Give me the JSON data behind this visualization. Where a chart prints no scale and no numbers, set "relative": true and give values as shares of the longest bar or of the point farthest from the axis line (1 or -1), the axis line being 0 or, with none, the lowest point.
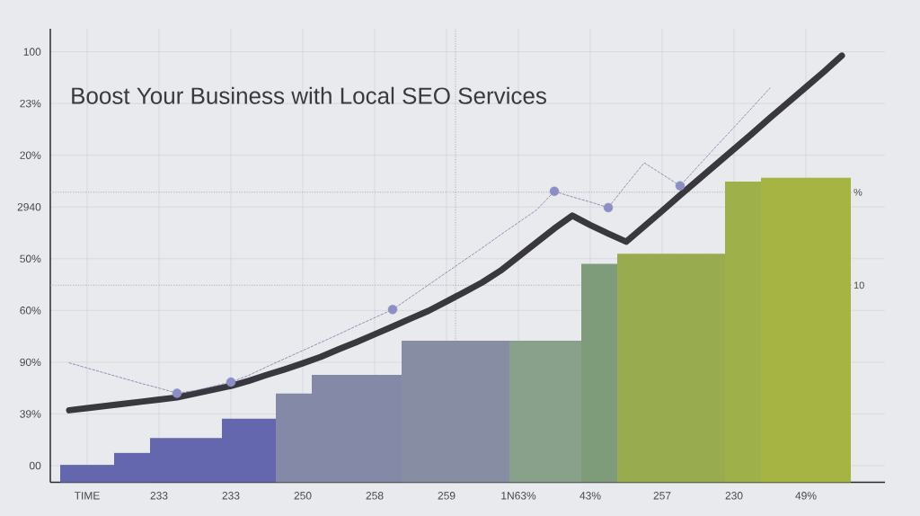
{
  "chart_data": {
    "type": "bar",
    "relative": true,
    "title": "Boost Your Business with Local SEO Services",
    "categories": [
      null,
      "TIME",
      null,
      null,
      null,
      "233",
      null,
      null,
      null,
      "233",
      null,
      null,
      null,
      "250",
      null,
      null,
      null,
      "258",
      null,
      null,
      null,
      "259",
      null,
      null,
      null,
      "1N63%",
      null,
      null,
      null,
      "43%",
      null,
      null,
      null,
      "257",
      null,
      null,
      null,
      "230",
      null,
      null,
      null,
      "49%",
      null,
      null
    ],
    "values": [
      0.041,
      0.041,
      0.041,
      0.069,
      0.069,
      0.104,
      0.104,
      0.104,
      0.104,
      0.149,
      0.149,
      0.149,
      0.208,
      0.208,
      0.252,
      0.252,
      0.252,
      0.252,
      0.252,
      0.332,
      0.332,
      0.332,
      0.332,
      0.332,
      0.332,
      0.332,
      0.332,
      0.332,
      0.332,
      0.512,
      0.512,
      0.536,
      0.536,
      0.536,
      0.536,
      0.536,
      0.536,
      0.705,
      0.705,
      0.714,
      0.714,
      0.714,
      0.714,
      0.714
    ],
    "colors": [
      "#6467ad",
      "#6467ad",
      "#6467ad",
      "#6467ad",
      "#6467ad",
      "#6467ad",
      "#6467ad",
      "#6467ad",
      "#6467ad",
      "#6467ad",
      "#6467ad",
      "#6467ad",
      "#8489a7",
      "#8489a7",
      "#8489a7",
      "#8489a7",
      "#8489a7",
      "#8489a7",
      "#8489a7",
      "#878ea3",
      "#878ea3",
      "#878ea3",
      "#878ea3",
      "#878ea3",
      "#878ea3",
      "#89a08a",
      "#89a08a",
      "#89a08a",
      "#89a08a",
      "#7f9c7a",
      "#7f9c7a",
      "#98ac4f",
      "#98ac4f",
      "#98ac4f",
      "#98ac4f",
      "#98ac4f",
      "#98ac4f",
      "#9db04a",
      "#9db04a",
      "#a6b444",
      "#a6b444",
      "#a6b444",
      "#a6b444",
      "#a6b444"
    ],
    "series": [
      {
        "type": "line",
        "line_style": "solid",
        "color": "#38383e",
        "values": [
          0.169,
          0.174,
          0.179,
          0.184,
          0.189,
          0.194,
          0.199,
          0.208,
          0.217,
          0.226,
          0.238,
          0.252,
          0.265,
          0.279,
          0.294,
          0.312,
          0.329,
          0.347,
          0.365,
          0.384,
          0.402,
          0.424,
          0.446,
          0.469,
          0.496,
          0.529,
          0.562,
          0.595,
          0.625,
          0.603,
          0.583,
          0.564,
          0.6,
          0.636,
          0.673,
          0.709,
          0.745,
          0.781,
          0.817,
          0.854,
          0.89,
          0.926,
          0.962,
          1.0
        ]
      },
      {
        "type": "line",
        "line_style": "dashed",
        "color": "#7a7aa8",
        "values": [
          0.28,
          0.268,
          0.256,
          0.244,
          0.232,
          0.221,
          0.209,
          0.215,
          0.225,
          0.235,
          0.251,
          0.271,
          0.29,
          0.309,
          0.328,
          0.347,
          0.367,
          0.386,
          0.405,
          0.434,
          0.463,
          0.492,
          0.521,
          0.55,
          0.58,
          0.609,
          0.638,
          0.682,
          0.669,
          0.657,
          0.644,
          0.697,
          0.749,
          0.722,
          0.695,
          0.741,
          0.787,
          0.832,
          0.878,
          0.924,
          null,
          null,
          null,
          null
        ]
      },
      {
        "type": "scatter",
        "marker": "circle",
        "color": "#8d8fc4",
        "values": [
          null,
          null,
          null,
          null,
          null,
          null,
          0.209,
          null,
          null,
          0.235,
          null,
          null,
          null,
          null,
          null,
          null,
          null,
          null,
          0.405,
          null,
          null,
          null,
          null,
          null,
          null,
          null,
          null,
          0.682,
          null,
          null,
          0.644,
          null,
          null,
          null,
          0.695,
          null,
          null,
          null,
          null,
          null,
          null,
          null,
          null,
          null
        ]
      }
    ],
    "ref_lines": [
      {
        "axis": "y",
        "value": 0.68,
        "color": "#9a9aa0",
        "line_style": "dotted"
      },
      {
        "axis": "y",
        "value": 0.462,
        "color": "#9a9aa0",
        "line_style": "dotted"
      },
      {
        "axis": "x",
        "value": "259",
        "color": "#9a9aa0",
        "line_style": "dotted"
      }
    ],
    "annotations": [
      "100",
      "23%",
      "20%",
      "2940",
      "50%",
      "60%",
      "90%",
      "39%",
      "00",
      "%",
      "10"
    ],
    "grid": true
  }
}
